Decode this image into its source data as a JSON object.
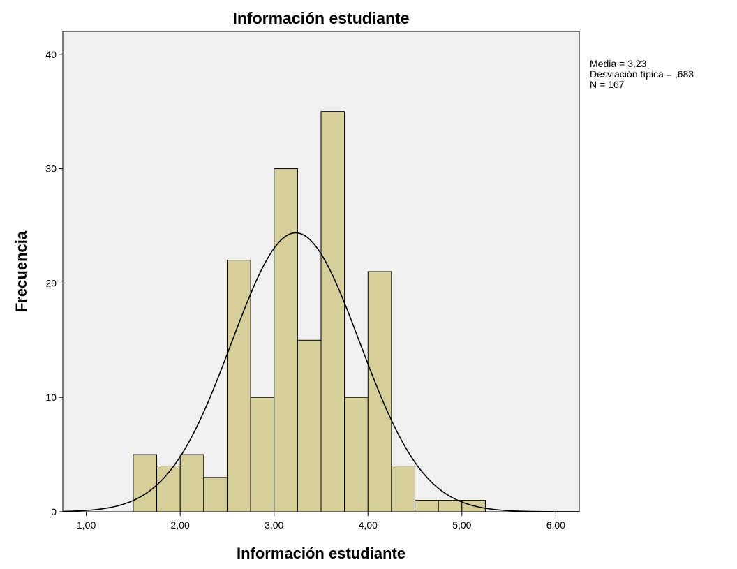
{
  "chart_data": {
    "type": "bar",
    "title": "Información estudiante",
    "xlabel": "Información estudiante",
    "ylabel": "Frecuencia",
    "xlim": [
      0.75,
      6.25
    ],
    "ylim": [
      0,
      42
    ],
    "x_ticks": [
      1,
      2,
      3,
      4,
      5,
      6
    ],
    "x_tick_labels": [
      "1,00",
      "2,00",
      "3,00",
      "4,00",
      "5,00",
      "6,00"
    ],
    "y_ticks": [
      0,
      10,
      20,
      30,
      40
    ],
    "y_tick_labels": [
      "0",
      "10",
      "20",
      "30",
      "40"
    ],
    "bin_width": 0.25,
    "bins": [
      {
        "start": 1.5,
        "end": 1.75,
        "count": 5
      },
      {
        "start": 1.75,
        "end": 2.0,
        "count": 4
      },
      {
        "start": 2.0,
        "end": 2.25,
        "count": 5
      },
      {
        "start": 2.25,
        "end": 2.5,
        "count": 3
      },
      {
        "start": 2.5,
        "end": 2.75,
        "count": 22
      },
      {
        "start": 2.75,
        "end": 3.0,
        "count": 10
      },
      {
        "start": 3.0,
        "end": 3.25,
        "count": 30
      },
      {
        "start": 3.25,
        "end": 3.5,
        "count": 15
      },
      {
        "start": 3.5,
        "end": 3.75,
        "count": 35
      },
      {
        "start": 3.75,
        "end": 4.0,
        "count": 10
      },
      {
        "start": 4.0,
        "end": 4.25,
        "count": 21
      },
      {
        "start": 4.25,
        "end": 4.5,
        "count": 4
      },
      {
        "start": 4.5,
        "end": 4.75,
        "count": 1
      },
      {
        "start": 4.75,
        "end": 5.0,
        "count": 1
      },
      {
        "start": 5.0,
        "end": 5.25,
        "count": 1
      }
    ],
    "normal_curve": {
      "mean": 3.23,
      "sd": 0.683,
      "n": 167
    },
    "stats_lines": [
      "Media = 3,23",
      "Desviación típica = ,683",
      "N = 167"
    ],
    "grid": false,
    "legend": "none",
    "colors": {
      "bar_fill": "#d6cf9c",
      "bar_stroke": "#000000",
      "plot_background": "#f0f0f0",
      "curve": "#000000"
    }
  }
}
